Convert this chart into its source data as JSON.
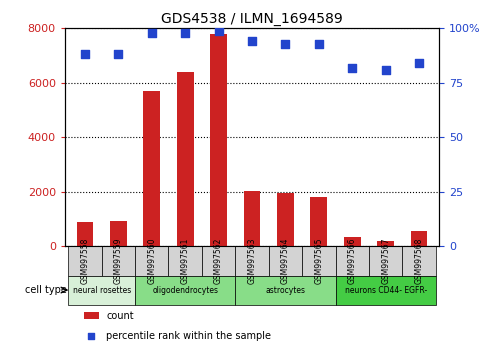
{
  "title": "GDS4538 / ILMN_1694589",
  "samples": [
    "GSM997558",
    "GSM997559",
    "GSM997560",
    "GSM997561",
    "GSM997562",
    "GSM997563",
    "GSM997564",
    "GSM997565",
    "GSM997566",
    "GSM997567",
    "GSM997568"
  ],
  "counts": [
    900,
    950,
    5700,
    6400,
    7800,
    2050,
    1950,
    1800,
    350,
    200,
    550
  ],
  "percentile": [
    88,
    88,
    98,
    98,
    99,
    94,
    93,
    93,
    82,
    81,
    84
  ],
  "ylim_left": [
    0,
    8000
  ],
  "ylim_right": [
    0,
    100
  ],
  "yticks_left": [
    0,
    2000,
    4000,
    6000,
    8000
  ],
  "yticks_right": [
    0,
    25,
    50,
    75,
    100
  ],
  "bar_color": "#cc2222",
  "dot_color": "#2244cc",
  "cell_types": [
    {
      "label": "neural rosettes",
      "start": 0,
      "end": 2,
      "color": "#d8f0d8"
    },
    {
      "label": "oligodendrocytes",
      "start": 2,
      "end": 5,
      "color": "#88dd88"
    },
    {
      "label": "astrocytes",
      "start": 5,
      "end": 8,
      "color": "#88dd88"
    },
    {
      "label": "neurons CD44- EGFR-",
      "start": 8,
      "end": 11,
      "color": "#44cc44"
    }
  ],
  "legend_count_label": "count",
  "legend_pct_label": "percentile rank within the sample",
  "xlabel_cell_type": "cell type",
  "background_color": "#ffffff",
  "plot_bg": "#ffffff",
  "grid_color": "#000000",
  "tick_label_color_left": "#cc2222",
  "tick_label_color_right": "#2244cc"
}
